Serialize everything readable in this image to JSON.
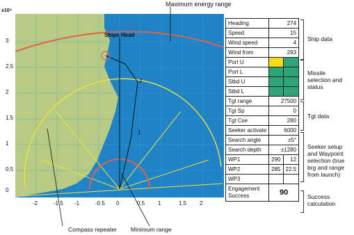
{
  "title_top": "Maximum energy range",
  "plot": {
    "y_multiplier": "x10⁴",
    "y_ticks": [
      "3",
      "2.5",
      "2",
      "1.5",
      "1",
      "0.5",
      "0"
    ],
    "x_ticks": [
      "-2",
      "-1.5",
      "-1",
      "-0.5",
      "0",
      "0.5",
      "1",
      "1.5",
      "2"
    ],
    "labels": {
      "ships_head": "Ships Head",
      "pt2": "2",
      "pt1": "1",
      "compass": [
        "180",
        "190",
        "200",
        "210",
        "220",
        "230",
        "240",
        "250",
        "260",
        "270",
        "280",
        "290",
        "300",
        "310",
        "320",
        "330",
        "340",
        "350",
        "000",
        "010",
        "020"
      ],
      "compass_main": [
        "000",
        "010",
        "020",
        "030",
        "040",
        "050",
        "060",
        "070",
        "080",
        "090",
        "100",
        "110",
        "120",
        "130",
        "140",
        "150",
        "160",
        "170",
        "180"
      ]
    },
    "annot_bottom_left": "Compass repeater",
    "annot_bottom_right": "Minimum range",
    "colors": {
      "sea": "#1f83c8",
      "land": "#b7cb83",
      "range": "#e0624d",
      "compass": "#f3e23a"
    }
  },
  "table": {
    "ship": [
      {
        "label": "Heading",
        "value": "274"
      },
      {
        "label": "Speed",
        "value": "15"
      },
      {
        "label": "Wind speed",
        "value": "4"
      },
      {
        "label": "Wind from",
        "value": "293"
      }
    ],
    "missile": [
      "Port U",
      "Port L",
      "Stbd U",
      "Stbd L"
    ],
    "tgt": [
      {
        "label": "Tgt range",
        "value": "27500"
      },
      {
        "label": "Tgt Sp",
        "value": "0"
      },
      {
        "label": "Tgt Cse",
        "value": "280"
      }
    ],
    "seeker": [
      {
        "label": "Seeker activate",
        "value": "6000"
      },
      {
        "label": "Search angle",
        "value": "±5°"
      },
      {
        "label": "Search depth",
        "value": "±1280"
      }
    ],
    "wp": [
      {
        "label": "WP1",
        "brg": "290",
        "rng": "12"
      },
      {
        "label": "WP2",
        "brg": "285",
        "rng": "22.5"
      },
      {
        "label": "WP3",
        "brg": "",
        "rng": ""
      }
    ],
    "success_label": "Engagement Success",
    "success_value": "90"
  },
  "groups": {
    "ship": "Ship data",
    "missile": "Missile selection and status",
    "tgt": "Tgt data",
    "seeker": "Seeker setup and Waypoint selection (true brg and range from launch)",
    "success": "Success calculation"
  }
}
